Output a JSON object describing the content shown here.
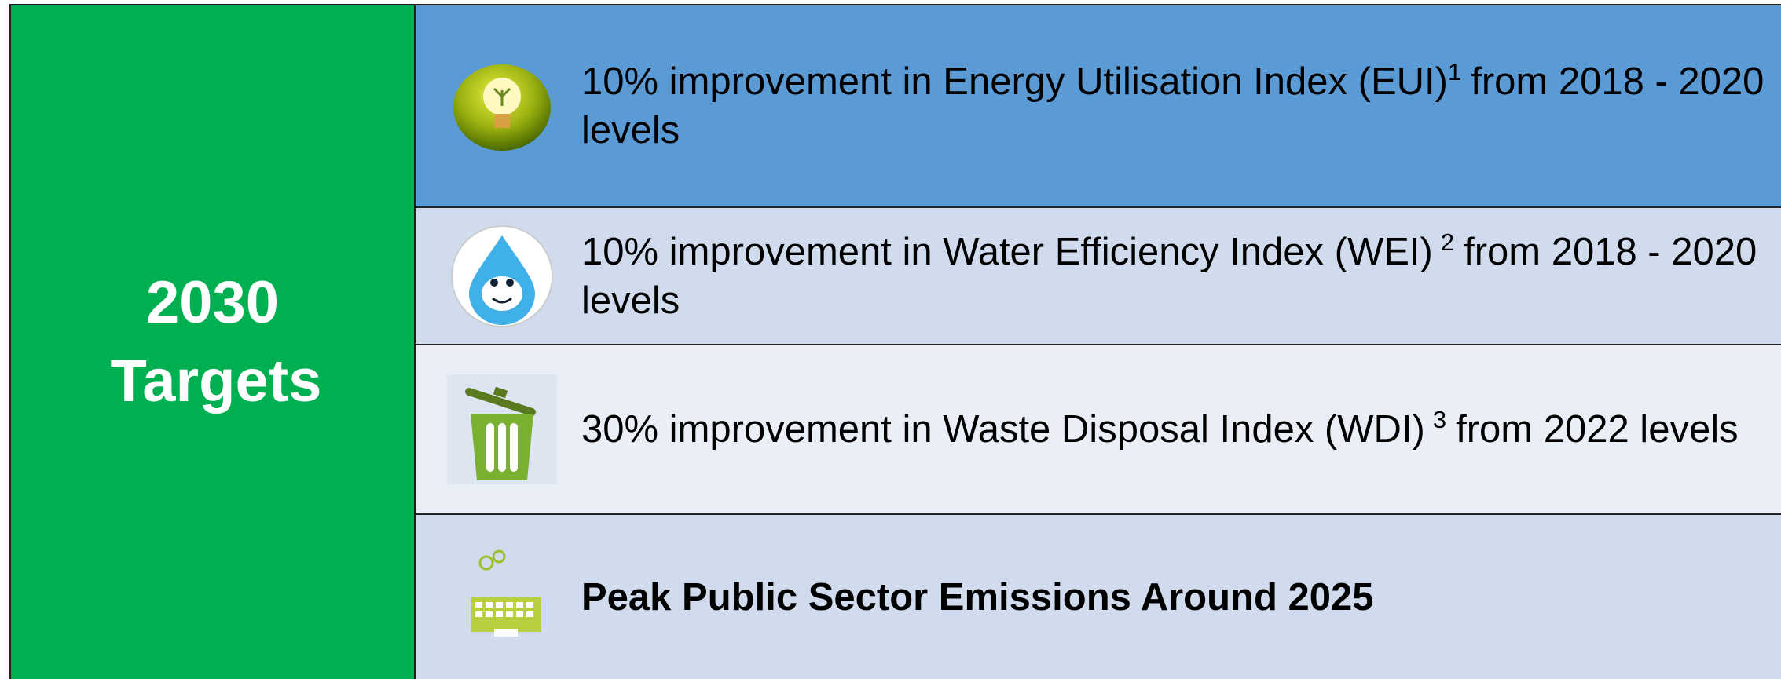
{
  "panel": {
    "title": "2030 Targets"
  },
  "targets": [
    {
      "text": "10% improvement in Energy Utilisation Index (EUI)",
      "sup": "1",
      "rest": "from 2018 - 2020 levels"
    },
    {
      "text": "10% improvement in Water Efficiency Index (WEI)",
      "sup": "2",
      "rest": "from 2018 - 2020 levels"
    },
    {
      "text": "30% improvement in Waste Disposal Index (WDI)",
      "sup": "3",
      "rest": "from 2022 levels"
    },
    {
      "text": "Peak Public Sector Emissions Around 2025"
    }
  ]
}
